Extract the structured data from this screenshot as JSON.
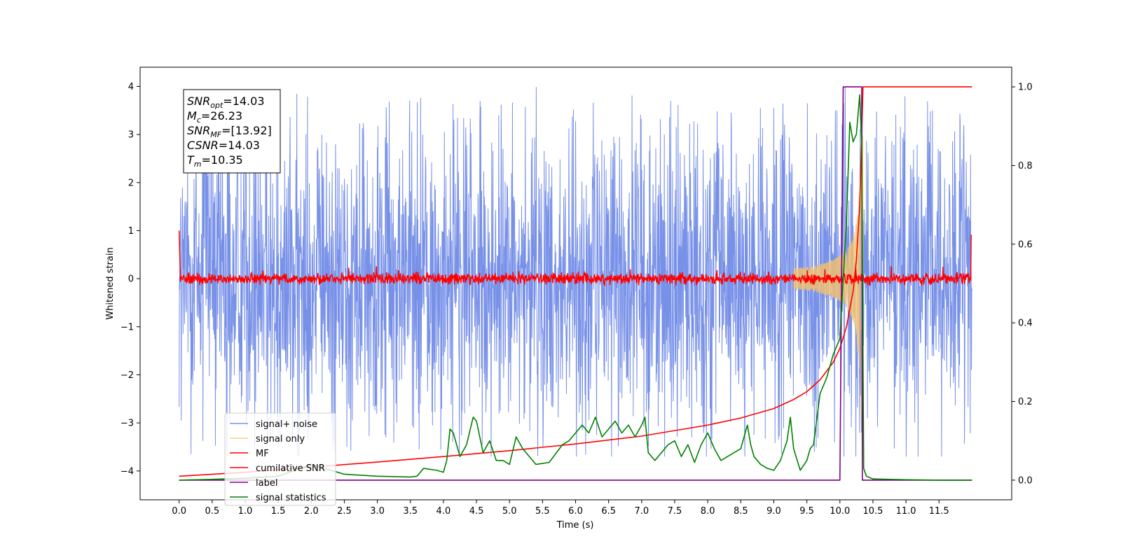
{
  "chart_data": {
    "type": "line",
    "xlabel": "Time (s)",
    "ylabel_left": "Whitened strain",
    "ylabel_right": "",
    "xlim": [
      -0.59,
      12.6
    ],
    "ylim_left": [
      -4.6,
      4.4
    ],
    "ylim_right": [
      -0.05,
      1.05
    ],
    "x_ticks": [
      "0.0",
      "0.5",
      "1.0",
      "1.5",
      "2.0",
      "2.5",
      "3.0",
      "3.5",
      "4.0",
      "4.5",
      "5.0",
      "5.5",
      "6.0",
      "6.5",
      "7.0",
      "7.5",
      "8.0",
      "8.5",
      "9.0",
      "9.5",
      "10.0",
      "10.5",
      "11.0",
      "11.5"
    ],
    "y_ticks_left": [
      "4",
      "3",
      "2",
      "1",
      "0",
      "−1",
      "−2",
      "−3",
      "−4"
    ],
    "y_ticks_right": [
      "1.0",
      "0.8",
      "0.6",
      "0.4",
      "0.2",
      "0.0"
    ],
    "grid": false,
    "legend_position": "lower-left",
    "annotation": {
      "lines": [
        {
          "var": "SNR",
          "sub": "opt",
          "value": "=14.03"
        },
        {
          "var": "M",
          "sub": "c",
          "value": "=26.23"
        },
        {
          "var": "SNR",
          "sub": "MF",
          "value": "=[13.92]"
        },
        {
          "var": "CSNR",
          "sub": "",
          "value": "=14.03"
        },
        {
          "var": "T",
          "sub": "m",
          "value": "=10.35"
        }
      ]
    },
    "series": [
      {
        "name": "signal+ noise",
        "color": "#6c88e6",
        "axis": "left",
        "kind": "noise",
        "x_start": 0.0,
        "x_end": 12.0,
        "amplitude": 2.6
      },
      {
        "name": "signal only",
        "color": "#f5c26b",
        "axis": "left",
        "kind": "chirp",
        "x_start": 9.3,
        "x_end": 10.35,
        "peak_amplitude": 3.2
      },
      {
        "name": "MF",
        "color": "#ff0000",
        "axis": "left",
        "kind": "mf",
        "x_start": 0.0,
        "x_end": 12.0
      },
      {
        "name": "cumilative SNR",
        "color": "#ff0000",
        "axis": "right",
        "x": [
          0.0,
          1.0,
          2.0,
          3.0,
          4.0,
          5.0,
          6.0,
          7.0,
          8.0,
          8.5,
          9.0,
          9.3,
          9.5,
          9.7,
          9.9,
          10.0,
          10.1,
          10.2,
          10.25,
          10.3,
          10.33,
          10.35,
          10.5,
          11.0,
          11.5,
          12.0
        ],
        "values": [
          0.01,
          0.02,
          0.033,
          0.046,
          0.06,
          0.075,
          0.092,
          0.112,
          0.14,
          0.158,
          0.182,
          0.205,
          0.225,
          0.255,
          0.3,
          0.335,
          0.39,
          0.48,
          0.56,
          0.7,
          0.88,
          1.0,
          1.0,
          1.0,
          1.0,
          1.0
        ]
      },
      {
        "name": "label",
        "color": "#800080",
        "axis": "right",
        "x": [
          0.0,
          10.0,
          10.05,
          10.33,
          10.34,
          12.0
        ],
        "values": [
          0.0,
          0.0,
          1.0,
          1.0,
          0.0,
          0.0
        ]
      },
      {
        "name": "signal statistics",
        "color": "#008000",
        "axis": "right",
        "x": [
          0.0,
          0.5,
          1.0,
          1.5,
          2.0,
          2.5,
          3.0,
          3.5,
          3.6,
          3.7,
          3.9,
          4.0,
          4.05,
          4.1,
          4.15,
          4.25,
          4.35,
          4.45,
          4.5,
          4.6,
          4.7,
          4.8,
          4.9,
          5.0,
          5.1,
          5.2,
          5.4,
          5.6,
          5.8,
          5.9,
          6.0,
          6.1,
          6.2,
          6.3,
          6.4,
          6.5,
          6.6,
          6.7,
          6.8,
          6.9,
          7.0,
          7.05,
          7.1,
          7.2,
          7.4,
          7.5,
          7.6,
          7.7,
          7.8,
          7.9,
          8.0,
          8.1,
          8.2,
          8.3,
          8.4,
          8.5,
          8.6,
          8.65,
          8.7,
          8.8,
          8.9,
          9.0,
          9.1,
          9.2,
          9.25,
          9.3,
          9.4,
          9.5,
          9.55,
          9.6,
          9.7,
          9.8,
          9.9,
          10.0,
          10.1,
          10.15,
          10.2,
          10.25,
          10.3,
          10.33,
          10.36,
          10.4,
          10.5,
          11.0,
          11.5,
          12.0
        ],
        "values": [
          0.0,
          0.002,
          0.005,
          0.01,
          0.04,
          0.015,
          0.01,
          0.008,
          0.01,
          0.03,
          0.025,
          0.02,
          0.05,
          0.13,
          0.12,
          0.06,
          0.09,
          0.16,
          0.15,
          0.07,
          0.1,
          0.05,
          0.05,
          0.04,
          0.11,
          0.08,
          0.04,
          0.045,
          0.09,
          0.1,
          0.12,
          0.14,
          0.12,
          0.16,
          0.11,
          0.13,
          0.15,
          0.12,
          0.14,
          0.11,
          0.14,
          0.16,
          0.07,
          0.05,
          0.09,
          0.1,
          0.06,
          0.09,
          0.045,
          0.09,
          0.12,
          0.08,
          0.05,
          0.06,
          0.07,
          0.08,
          0.14,
          0.09,
          0.06,
          0.04,
          0.03,
          0.025,
          0.05,
          0.1,
          0.16,
          0.08,
          0.025,
          0.05,
          0.08,
          0.09,
          0.22,
          0.26,
          0.32,
          0.36,
          0.66,
          0.91,
          0.86,
          0.88,
          0.98,
          0.85,
          0.03,
          0.01,
          0.003,
          0.001,
          0.0,
          0.0
        ]
      }
    ]
  }
}
